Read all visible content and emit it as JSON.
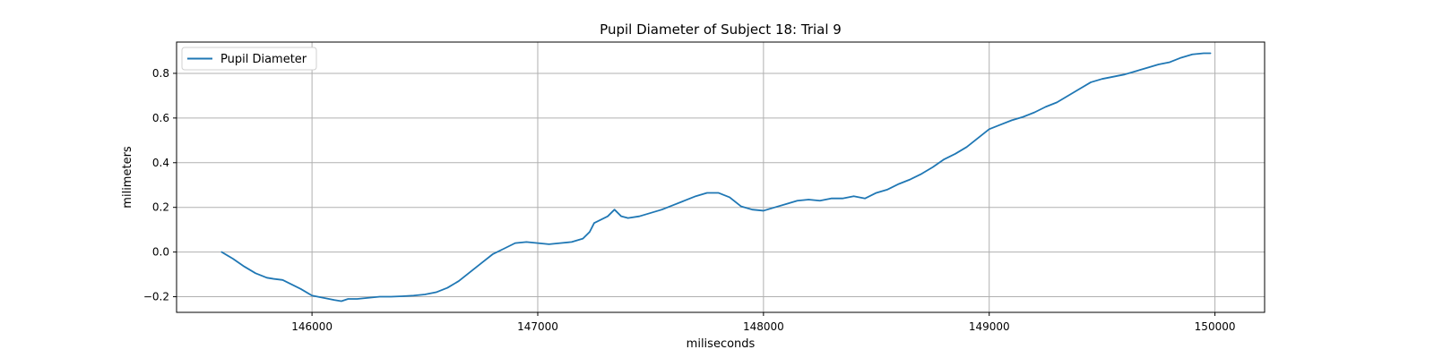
{
  "chart_data": {
    "type": "line",
    "title": "Pupil Diameter of Subject 18: Trial 9",
    "xlabel": "miliseconds",
    "ylabel": "milimeters",
    "xlim": [
      145400,
      150220
    ],
    "ylim": [
      -0.27,
      0.94
    ],
    "xticks": [
      146000,
      147000,
      148000,
      149000,
      150000
    ],
    "yticks": [
      -0.2,
      0.0,
      0.2,
      0.4,
      0.6,
      0.8
    ],
    "xtick_labels": [
      "146000",
      "147000",
      "148000",
      "149000",
      "150000"
    ],
    "ytick_labels": [
      "−0.2",
      "0.0",
      "0.2",
      "0.4",
      "0.6",
      "0.8"
    ],
    "grid": true,
    "legend_position": "top-left",
    "series": [
      {
        "name": "Pupil Diameter",
        "color": "#1f77b4",
        "x": [
          145600,
          145650,
          145700,
          145750,
          145800,
          145830,
          145870,
          145900,
          145950,
          146000,
          146050,
          146100,
          146130,
          146160,
          146200,
          146250,
          146300,
          146350,
          146400,
          146450,
          146500,
          146550,
          146600,
          146650,
          146700,
          146750,
          146800,
          146850,
          146900,
          146950,
          147000,
          147050,
          147100,
          147150,
          147200,
          147230,
          147250,
          147280,
          147310,
          147340,
          147370,
          147400,
          147450,
          147500,
          147550,
          147600,
          147650,
          147700,
          147750,
          147800,
          147850,
          147900,
          147950,
          148000,
          148050,
          148100,
          148150,
          148200,
          148250,
          148300,
          148350,
          148400,
          148450,
          148500,
          148550,
          148600,
          148650,
          148700,
          148750,
          148800,
          148850,
          148900,
          148950,
          149000,
          149050,
          149100,
          149150,
          149200,
          149250,
          149300,
          149350,
          149400,
          149450,
          149500,
          149550,
          149600,
          149650,
          149700,
          149750,
          149800,
          149850,
          149900,
          149950,
          149980
        ],
        "y": [
          0.0,
          -0.03,
          -0.065,
          -0.095,
          -0.115,
          -0.12,
          -0.125,
          -0.14,
          -0.165,
          -0.195,
          -0.205,
          -0.215,
          -0.22,
          -0.21,
          -0.21,
          -0.205,
          -0.2,
          -0.2,
          -0.198,
          -0.195,
          -0.19,
          -0.18,
          -0.16,
          -0.13,
          -0.09,
          -0.05,
          -0.01,
          0.015,
          0.04,
          0.045,
          0.04,
          0.035,
          0.04,
          0.045,
          0.06,
          0.09,
          0.13,
          0.145,
          0.16,
          0.19,
          0.16,
          0.152,
          0.16,
          0.175,
          0.19,
          0.21,
          0.23,
          0.25,
          0.265,
          0.265,
          0.245,
          0.205,
          0.19,
          0.185,
          0.2,
          0.215,
          0.23,
          0.235,
          0.23,
          0.24,
          0.24,
          0.25,
          0.24,
          0.265,
          0.28,
          0.305,
          0.325,
          0.35,
          0.38,
          0.415,
          0.44,
          0.47,
          0.51,
          0.55,
          0.57,
          0.59,
          0.605,
          0.625,
          0.65,
          0.67,
          0.7,
          0.73,
          0.76,
          0.775,
          0.785,
          0.795,
          0.81,
          0.825,
          0.84,
          0.85,
          0.87,
          0.885,
          0.89,
          0.89
        ]
      }
    ]
  }
}
